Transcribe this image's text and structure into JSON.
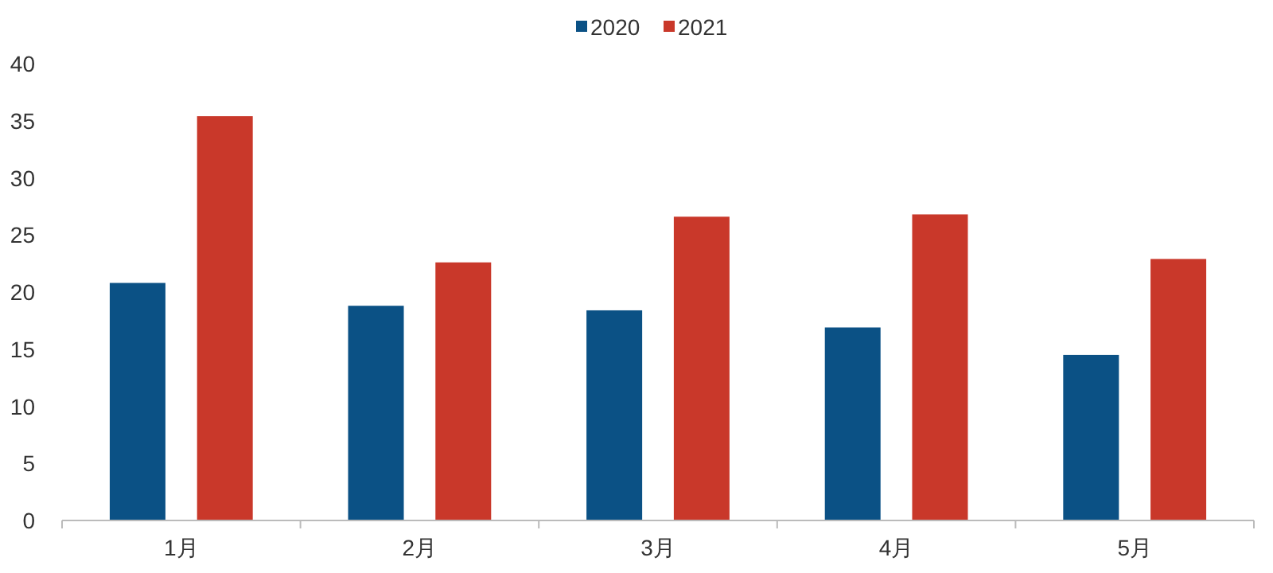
{
  "chart_data": {
    "type": "bar",
    "categories": [
      "1月",
      "2月",
      "3月",
      "4月",
      "5月"
    ],
    "series": [
      {
        "name": "2020",
        "color": "#0b5185",
        "values": [
          20.8,
          18.8,
          18.4,
          16.9,
          14.5
        ]
      },
      {
        "name": "2021",
        "color": "#c9382a",
        "values": [
          35.4,
          22.6,
          26.6,
          26.8,
          22.9
        ]
      }
    ],
    "ylim": [
      0,
      40
    ],
    "yticks": [
      0,
      5,
      10,
      15,
      20,
      25,
      30,
      35,
      40
    ],
    "grid": false,
    "legend": "top"
  }
}
